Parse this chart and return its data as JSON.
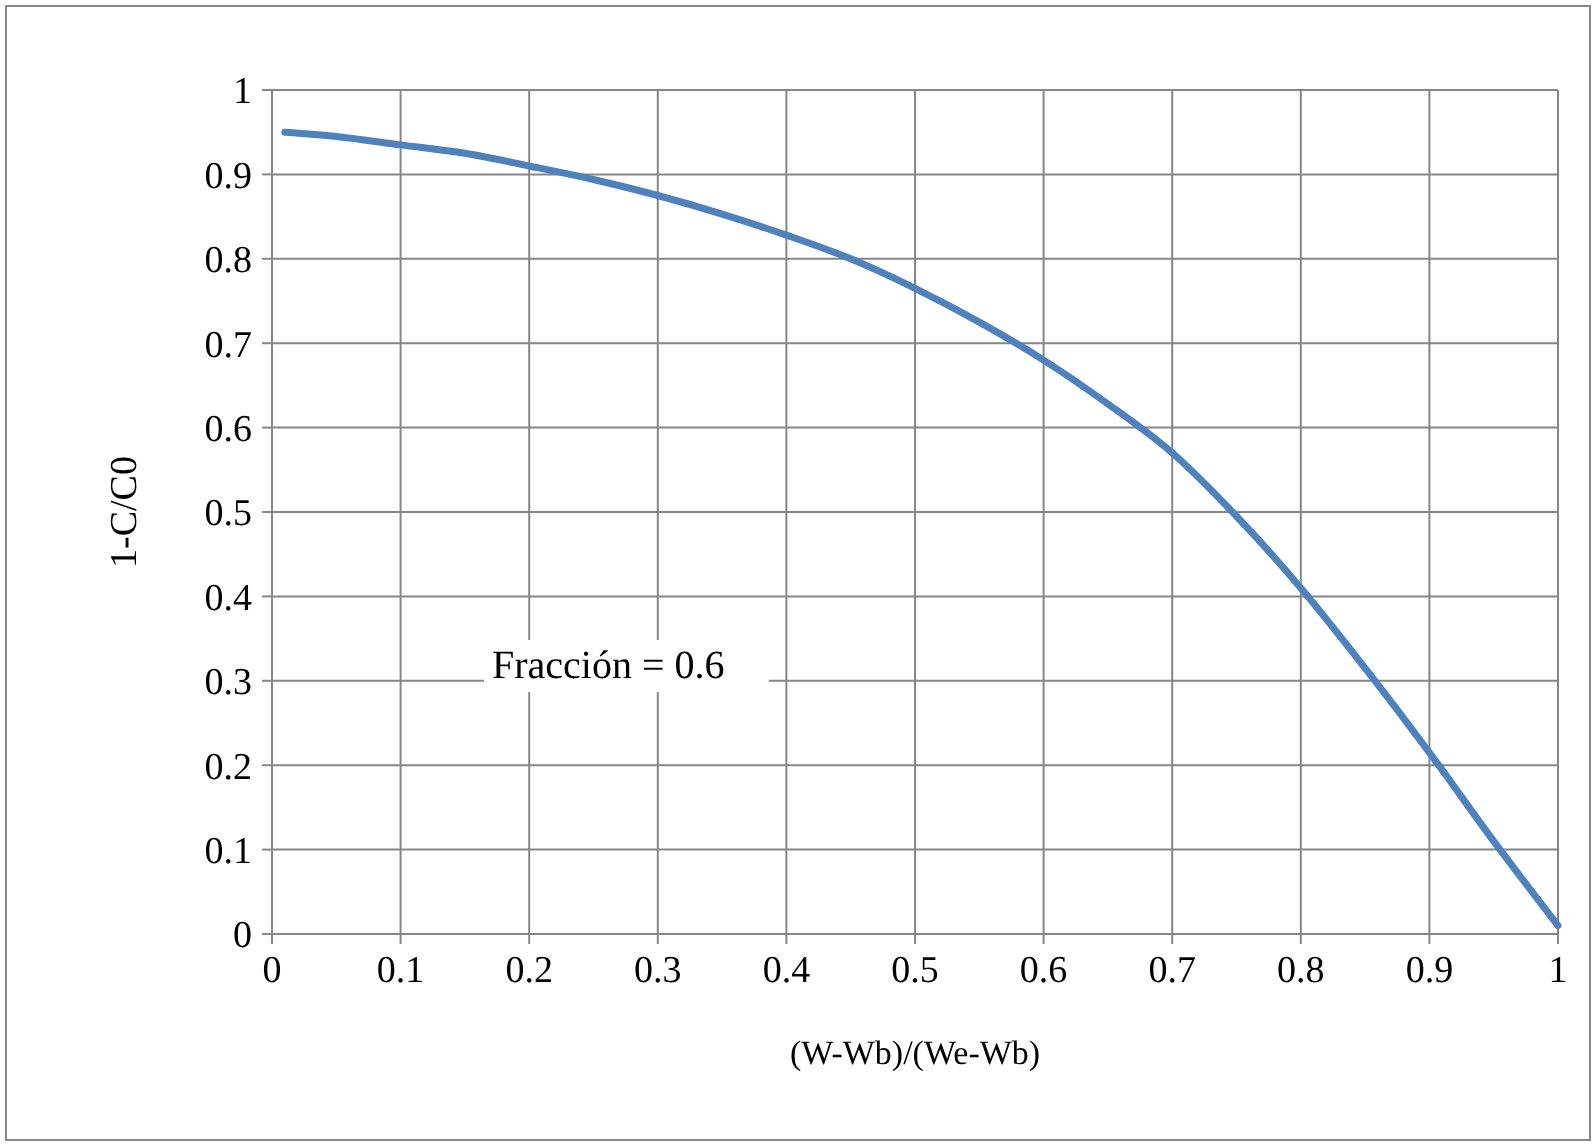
{
  "chart_data": {
    "type": "line",
    "xlabel": "(W-Wb)/(We-Wb)",
    "ylabel": "1-C/C0",
    "annotations": [
      "Fracción = 0.6"
    ],
    "series": [
      {
        "color": "#4f81bd",
        "x": [
          0.01,
          0.05,
          0.1,
          0.15,
          0.2,
          0.25,
          0.3,
          0.35,
          0.4,
          0.45,
          0.5,
          0.55,
          0.6,
          0.65,
          0.7,
          0.75,
          0.8,
          0.85,
          0.9,
          0.95,
          1.0
        ],
        "values": [
          0.95,
          0.945,
          0.935,
          0.925,
          0.91,
          0.894,
          0.875,
          0.853,
          0.828,
          0.8,
          0.765,
          0.725,
          0.68,
          0.628,
          0.57,
          0.495,
          0.41,
          0.315,
          0.215,
          0.11,
          0.01
        ]
      }
    ],
    "xlim": [
      0,
      1
    ],
    "ylim": [
      0,
      1
    ],
    "xticks": [
      0,
      0.1,
      0.2,
      0.3,
      0.4,
      0.5,
      0.6,
      0.7,
      0.8,
      0.9,
      1
    ],
    "yticks": [
      0,
      0.1,
      0.2,
      0.3,
      0.4,
      0.5,
      0.6,
      0.7,
      0.8,
      0.9,
      1
    ],
    "grid": true,
    "marker": "none",
    "line_style": "solid"
  }
}
